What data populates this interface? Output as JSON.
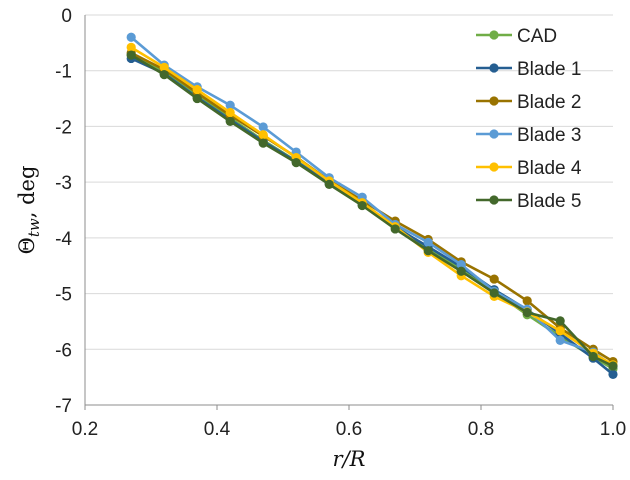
{
  "chart_data": {
    "type": "line",
    "title": "",
    "xlabel": "r/R",
    "ylabel": "Θtw, deg",
    "ylabel_main": "Θ",
    "ylabel_sub": "tw",
    "ylabel_suffix": ", deg",
    "xlim": [
      0.2,
      1.0
    ],
    "ylim": [
      -7,
      0
    ],
    "x_ticks": [
      "0.2",
      "0.4",
      "0.6",
      "0.8",
      "1.0"
    ],
    "y_ticks": [
      "0",
      "-1",
      "-2",
      "-3",
      "-4",
      "-5",
      "-6",
      "-7"
    ],
    "grid": "horizontal",
    "legend_position": "top-right",
    "x": [
      0.27,
      0.32,
      0.37,
      0.42,
      0.47,
      0.52,
      0.57,
      0.62,
      0.67,
      0.72,
      0.77,
      0.82,
      0.87,
      0.92,
      0.97,
      1.0
    ],
    "series": [
      {
        "name": "CAD",
        "color": "#70ad47",
        "values": [
          -0.72,
          -1.02,
          -1.45,
          -1.85,
          -2.25,
          -2.62,
          -3.01,
          -3.4,
          -3.79,
          -4.19,
          -4.57,
          -4.97,
          -5.38,
          -5.77,
          -6.14,
          -6.35
        ]
      },
      {
        "name": "Blade 1",
        "color": "#255e91",
        "values": [
          -0.78,
          -1.05,
          -1.48,
          -1.88,
          -2.27,
          -2.63,
          -3.02,
          -3.41,
          -3.81,
          -4.16,
          -4.52,
          -4.93,
          -5.29,
          -5.72,
          -6.16,
          -6.45
        ]
      },
      {
        "name": "Blade 2",
        "color": "#997300",
        "values": [
          -0.68,
          -0.98,
          -1.4,
          -1.8,
          -2.17,
          -2.55,
          -2.97,
          -3.33,
          -3.7,
          -4.03,
          -4.43,
          -4.74,
          -5.13,
          -5.62,
          -6.0,
          -6.22
        ]
      },
      {
        "name": "Blade 3",
        "color": "#5b9bd5",
        "values": [
          -0.4,
          -0.9,
          -1.29,
          -1.62,
          -2.01,
          -2.46,
          -2.92,
          -3.27,
          -3.76,
          -4.08,
          -4.48,
          -4.96,
          -5.28,
          -5.84,
          -6.05,
          -6.3
        ]
      },
      {
        "name": "Blade 4",
        "color": "#ffc000",
        "values": [
          -0.58,
          -0.94,
          -1.34,
          -1.75,
          -2.15,
          -2.56,
          -2.98,
          -3.37,
          -3.8,
          -4.26,
          -4.68,
          -5.05,
          -5.33,
          -5.67,
          -6.07,
          -6.28
        ]
      },
      {
        "name": "Blade 5",
        "color": "#43682b",
        "values": [
          -0.72,
          -1.07,
          -1.5,
          -1.91,
          -2.3,
          -2.65,
          -3.04,
          -3.42,
          -3.84,
          -4.23,
          -4.6,
          -4.99,
          -5.34,
          -5.49,
          -6.13,
          -6.3
        ]
      }
    ]
  }
}
